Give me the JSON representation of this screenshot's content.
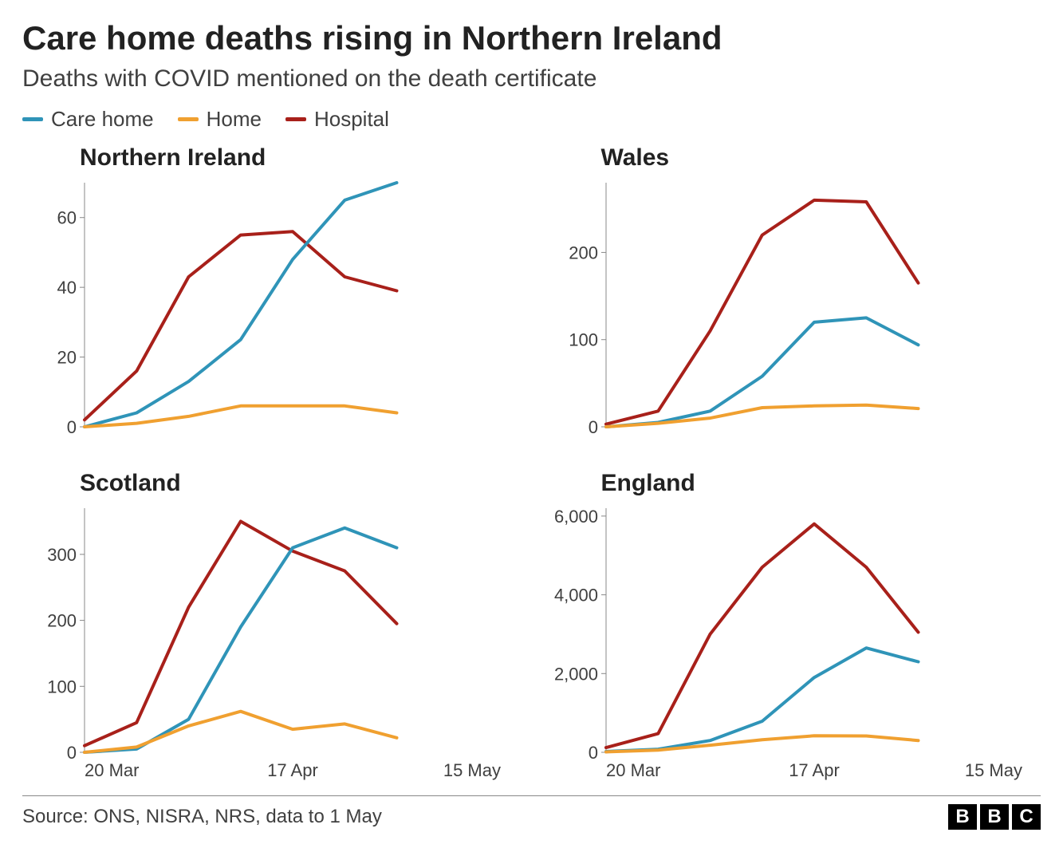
{
  "title": "Care home deaths rising in Northern Ireland",
  "subtitle": "Deaths with COVID mentioned on the death certificate",
  "colors": {
    "care_home": "#2f94b8",
    "home": "#f0a030",
    "hospital": "#a8201a",
    "axis": "#888888",
    "text": "#404040",
    "background": "#ffffff"
  },
  "legend": [
    {
      "label": "Care home",
      "color_key": "care_home"
    },
    {
      "label": "Home",
      "color_key": "home"
    },
    {
      "label": "Hospital",
      "color_key": "hospital"
    }
  ],
  "line_width": 4,
  "title_fontsize": 42,
  "subtitle_fontsize": 30,
  "panel_title_fontsize": 30,
  "axis_fontsize": 22,
  "layout": {
    "rows": 2,
    "cols": 2
  },
  "x": {
    "domain": [
      0,
      56
    ],
    "ticks": [
      {
        "v": 0,
        "label": "20 Mar"
      },
      {
        "v": 28,
        "label": "17 Apr"
      },
      {
        "v": 56,
        "label": "15 May"
      }
    ],
    "show_labels_on_bottom_row_only": true
  },
  "panels": [
    {
      "id": "ni",
      "title": "Northern Ireland",
      "ylim": [
        0,
        70
      ],
      "yticks": [
        0,
        20,
        40,
        60
      ],
      "series": {
        "hospital": {
          "x": [
            0,
            7,
            14,
            21,
            28,
            35,
            42
          ],
          "y": [
            2,
            16,
            43,
            55,
            56,
            43,
            39
          ]
        },
        "care_home": {
          "x": [
            0,
            7,
            14,
            21,
            28,
            35,
            42
          ],
          "y": [
            0,
            4,
            13,
            25,
            48,
            65,
            70
          ]
        },
        "home": {
          "x": [
            0,
            7,
            14,
            21,
            28,
            35,
            42
          ],
          "y": [
            0,
            1,
            3,
            6,
            6,
            6,
            4
          ]
        }
      }
    },
    {
      "id": "wales",
      "title": "Wales",
      "ylim": [
        0,
        280
      ],
      "yticks": [
        0,
        100,
        200
      ],
      "series": {
        "hospital": {
          "x": [
            0,
            7,
            14,
            21,
            28,
            35,
            42
          ],
          "y": [
            3,
            18,
            110,
            220,
            260,
            258,
            165
          ]
        },
        "care_home": {
          "x": [
            0,
            7,
            14,
            21,
            28,
            35,
            42
          ],
          "y": [
            0,
            5,
            18,
            58,
            120,
            125,
            94
          ]
        },
        "home": {
          "x": [
            0,
            7,
            14,
            21,
            28,
            35,
            42
          ],
          "y": [
            0,
            4,
            10,
            22,
            24,
            25,
            21
          ]
        }
      }
    },
    {
      "id": "scotland",
      "title": "Scotland",
      "ylim": [
        0,
        370
      ],
      "yticks": [
        0,
        100,
        200,
        300
      ],
      "series": {
        "hospital": {
          "x": [
            0,
            7,
            14,
            21,
            28,
            35,
            42
          ],
          "y": [
            10,
            45,
            220,
            350,
            305,
            275,
            195
          ]
        },
        "care_home": {
          "x": [
            0,
            7,
            14,
            21,
            28,
            35,
            42
          ],
          "y": [
            0,
            5,
            50,
            190,
            310,
            340,
            310
          ]
        },
        "home": {
          "x": [
            0,
            7,
            14,
            21,
            28,
            35,
            42
          ],
          "y": [
            0,
            8,
            40,
            62,
            35,
            43,
            22
          ]
        }
      }
    },
    {
      "id": "england",
      "title": "England",
      "ylim": [
        0,
        6200
      ],
      "yticks": [
        0,
        2000,
        4000,
        6000
      ],
      "ytick_labels": [
        "0",
        "2,000",
        "4,000",
        "6,000"
      ],
      "series": {
        "hospital": {
          "x": [
            0,
            7,
            14,
            21,
            28,
            35,
            42
          ],
          "y": [
            120,
            475,
            3000,
            4700,
            5800,
            4700,
            3050
          ]
        },
        "care_home": {
          "x": [
            0,
            7,
            14,
            21,
            28,
            35,
            42
          ],
          "y": [
            20,
            80,
            300,
            790,
            1900,
            2650,
            2300
          ]
        },
        "home": {
          "x": [
            0,
            7,
            14,
            21,
            28,
            35,
            42
          ],
          "y": [
            10,
            55,
            180,
            320,
            420,
            415,
            300
          ]
        }
      }
    }
  ],
  "footer": {
    "source": "Source: ONS, NISRA, NRS, data to 1 May",
    "logo": [
      "B",
      "B",
      "C"
    ]
  }
}
